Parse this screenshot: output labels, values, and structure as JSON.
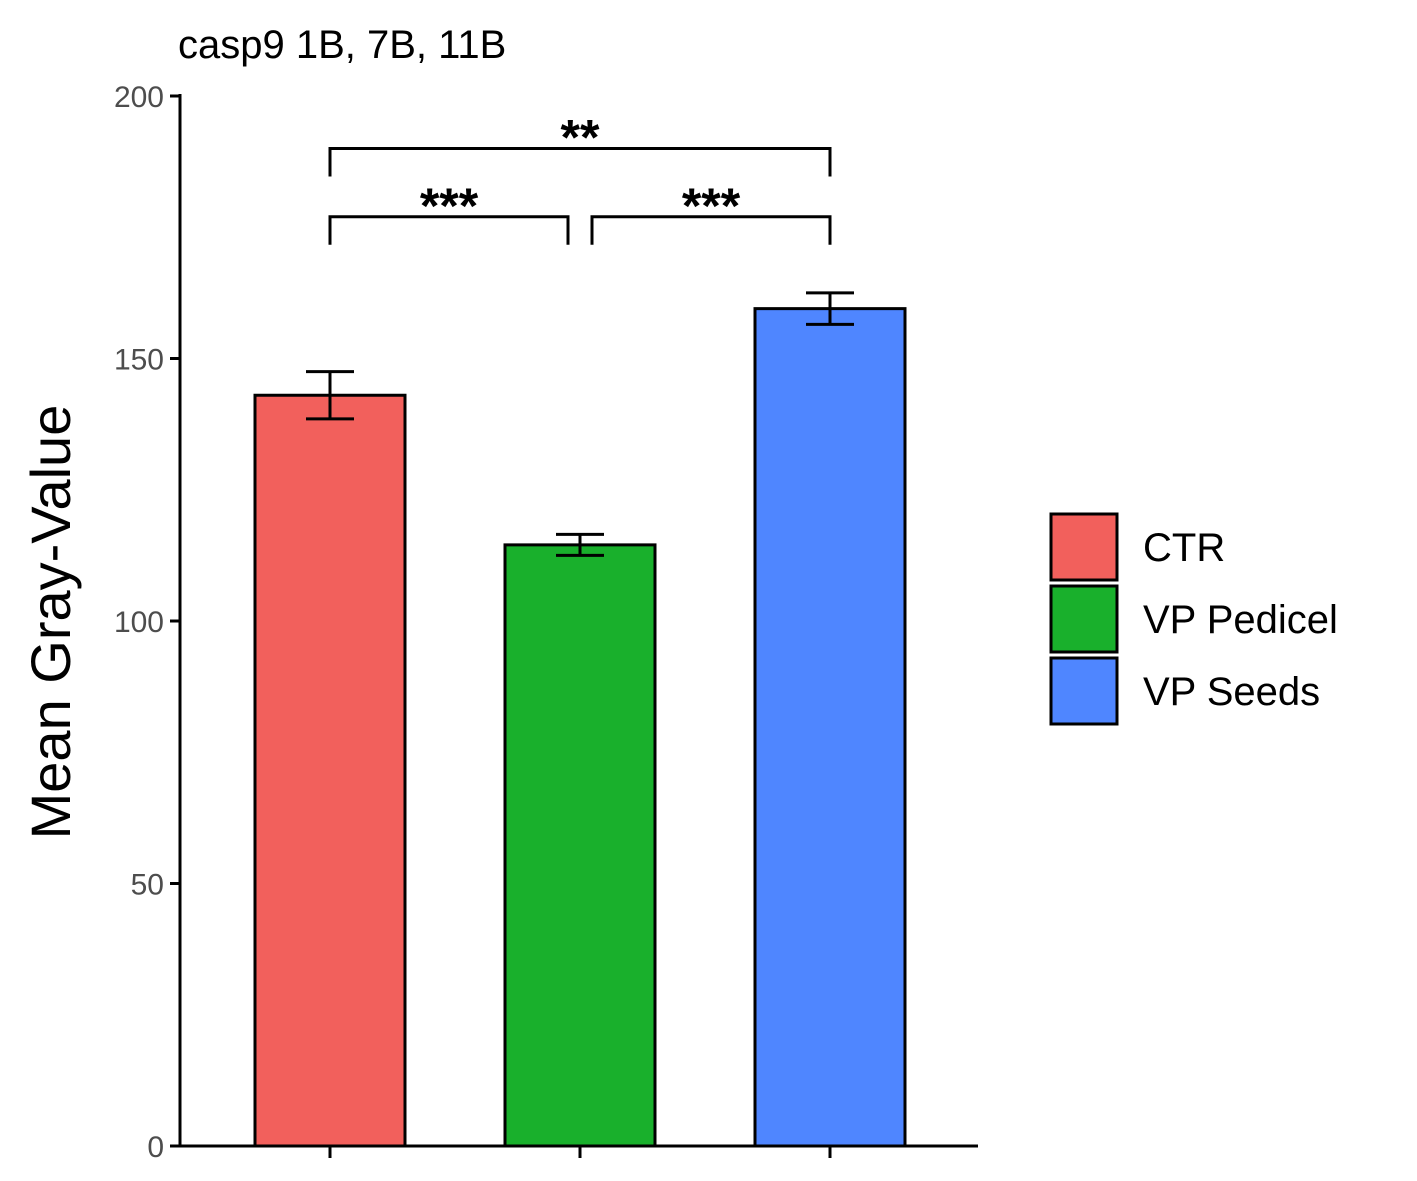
{
  "chart_data": {
    "type": "bar",
    "title": "casp9 1B, 7B, 11B",
    "xlabel": "",
    "ylabel": "Mean Gray-Value",
    "ylim": [
      0,
      200
    ],
    "yticks": [
      "0",
      "50",
      "100",
      "150",
      "200"
    ],
    "categories": [
      "CTR",
      "VP Pedicel",
      "VP Seeds"
    ],
    "values": [
      143,
      114.5,
      159.5
    ],
    "errors": [
      4.5,
      2,
      3
    ],
    "colors": [
      "#f2605c",
      "#19b02c",
      "#4f86ff"
    ],
    "legend": {
      "placement": "right",
      "entries": [
        "CTR",
        "VP Pedicel",
        "VP Seeds"
      ]
    },
    "significance": [
      {
        "from": 0,
        "to": 1,
        "label": "***",
        "y": 177
      },
      {
        "from": 1,
        "to": 2,
        "label": "***",
        "y": 177
      },
      {
        "from": 0,
        "to": 2,
        "label": "**",
        "y": 190
      }
    ],
    "grid": false
  }
}
